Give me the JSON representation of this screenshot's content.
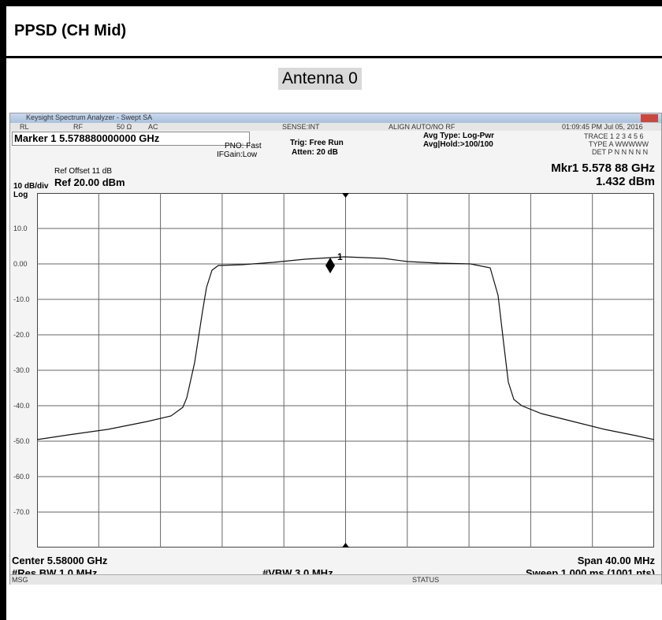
{
  "header": {
    "title": "PPSD (CH Mid)"
  },
  "antenna": "Antenna 0",
  "analyzer": {
    "window_title": "Keysight Spectrum Analyzer - Swept SA",
    "toolbar": [
      "RL",
      "RF",
      "50 Ω",
      "AC",
      "SENSE:INT",
      "ALIGN AUTO/NO RF",
      "01:09:45 PM Jul 05, 2016"
    ],
    "marker": "Marker 1 5.578880000000 GHz",
    "pno": [
      "PNO: Fast",
      "IFGain:Low"
    ],
    "trig": [
      "Trig: Free Run",
      "Atten: 20 dB"
    ],
    "avg": [
      "Avg Type: Log-Pwr",
      "Avg|Hold:>100/100"
    ],
    "trace_info": [
      "TRACE 1 2 3 4 5 6",
      "TYPE A WWWWW",
      "DET P N N N N N"
    ],
    "ref_offset": "Ref Offset 11 dB",
    "ref_level": "Ref 20.00 dBm",
    "scale": "10 dB/div",
    "scale_type": "Log",
    "marker_freq": "Mkr1 5.578 88 GHz",
    "marker_level": "1.432 dBm",
    "marker_label": "1",
    "y_labels": [
      "10.0",
      "0.00",
      "-10.0",
      "-20.0",
      "-30.0",
      "-40.0",
      "-50.0",
      "-60.0",
      "-70.0"
    ],
    "center": "Center 5.58000 GHz",
    "res_bw": "#Res BW 1.0 MHz",
    "vbw": "#VBW 3.0 MHz",
    "span": "Span 40.00 MHz",
    "sweep": "Sweep  1.000 ms (1001 pts)",
    "msg": "MSG",
    "status": "STATUS"
  }
}
